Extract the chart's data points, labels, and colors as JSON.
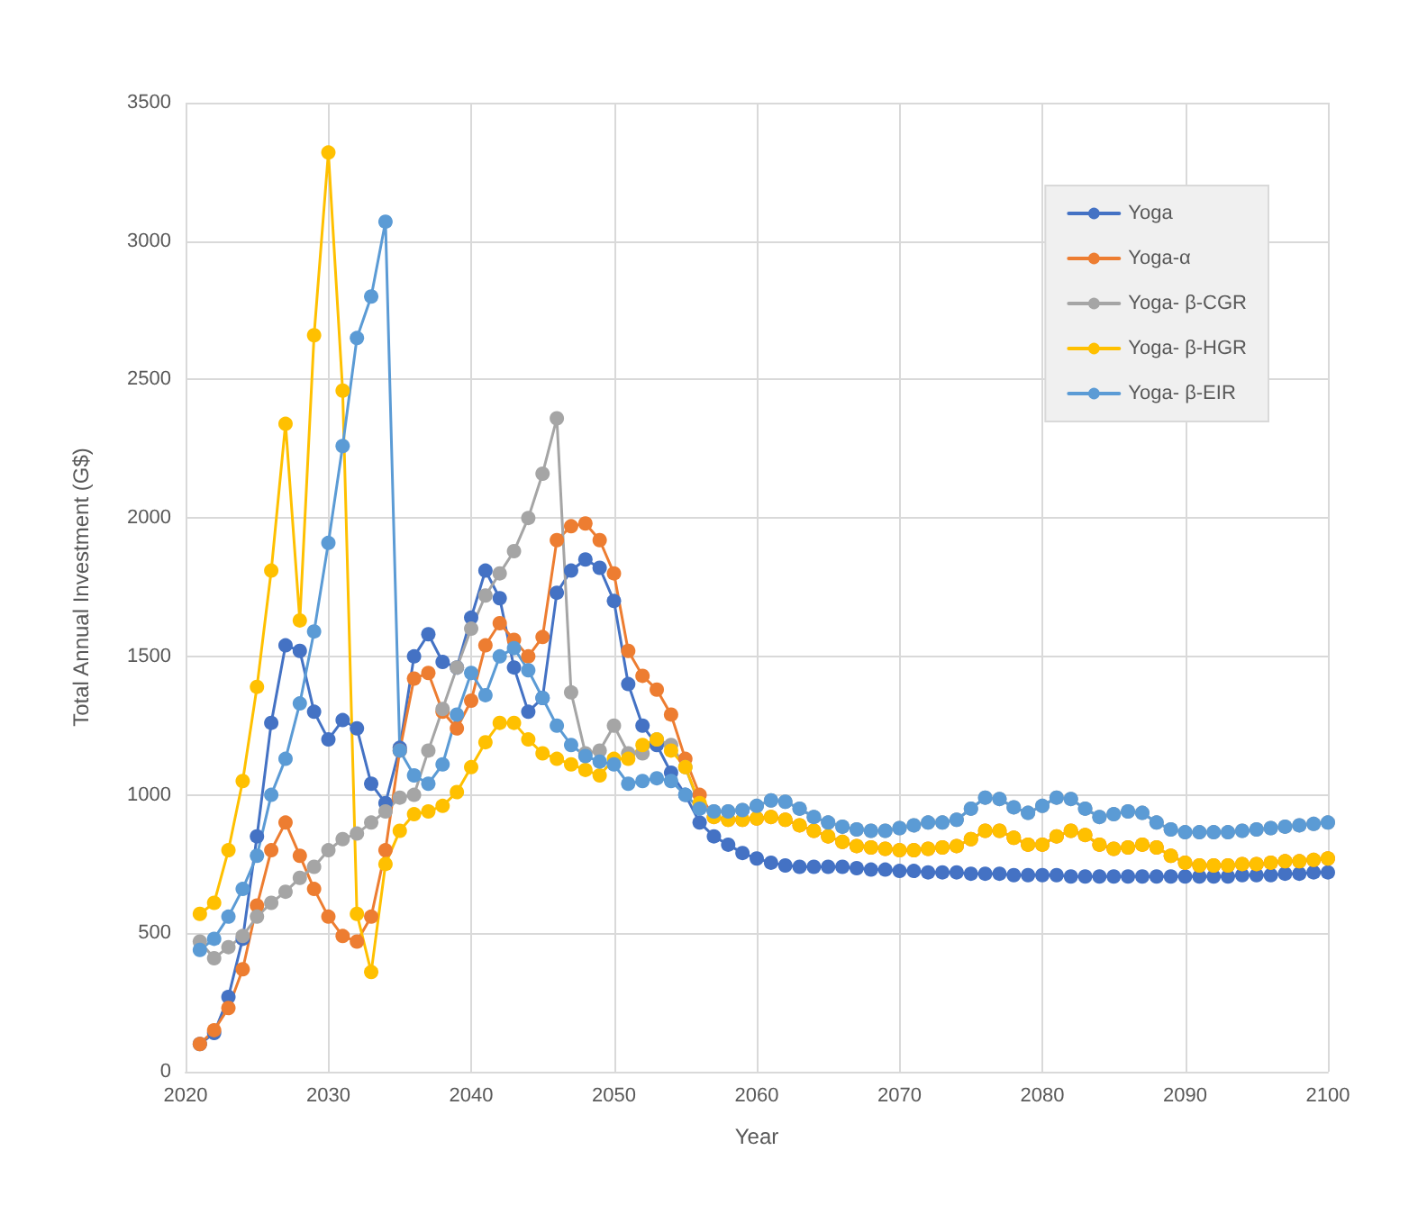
{
  "chart_data": {
    "type": "line",
    "xlabel": "Year",
    "ylabel": "Total Annual Investment (G$)",
    "x": [
      2021,
      2022,
      2023,
      2024,
      2025,
      2026,
      2027,
      2028,
      2029,
      2030,
      2031,
      2032,
      2033,
      2034,
      2035,
      2036,
      2037,
      2038,
      2039,
      2040,
      2041,
      2042,
      2043,
      2044,
      2045,
      2046,
      2047,
      2048,
      2049,
      2050,
      2051,
      2052,
      2053,
      2054,
      2055,
      2056,
      2057,
      2058,
      2059,
      2060,
      2061,
      2062,
      2063,
      2064,
      2065,
      2066,
      2067,
      2068,
      2069,
      2070,
      2071,
      2072,
      2073,
      2074,
      2075,
      2076,
      2077,
      2078,
      2079,
      2080,
      2081,
      2082,
      2083,
      2084,
      2085,
      2086,
      2087,
      2088,
      2089,
      2090,
      2091,
      2092,
      2093,
      2094,
      2095,
      2096,
      2097,
      2098,
      2099,
      2100
    ],
    "series": [
      {
        "name": "Yoga",
        "color": "#4472c4",
        "values": [
          100,
          140,
          270,
          480,
          850,
          1260,
          1540,
          1520,
          1300,
          1200,
          1270,
          1240,
          1040,
          970,
          1170,
          1500,
          1580,
          1480,
          1460,
          1640,
          1810,
          1710,
          1460,
          1300,
          1350,
          1730,
          1810,
          1850,
          1820,
          1700,
          1400,
          1250,
          1180,
          1080,
          1000,
          900,
          850,
          820,
          790,
          770,
          755,
          745,
          740,
          740,
          740,
          740,
          735,
          730,
          730,
          725,
          725,
          720,
          720,
          720,
          715,
          715,
          715,
          710,
          710,
          710,
          710,
          705,
          705,
          705,
          705,
          705,
          705,
          705,
          705,
          705,
          705,
          705,
          705,
          710,
          710,
          710,
          715,
          715,
          720,
          720
        ]
      },
      {
        "name": "Yoga-α",
        "color": "#ed7d31",
        "values": [
          100,
          150,
          230,
          370,
          600,
          800,
          900,
          780,
          660,
          560,
          490,
          470,
          560,
          800,
          1160,
          1420,
          1440,
          1300,
          1240,
          1340,
          1540,
          1620,
          1560,
          1500,
          1570,
          1920,
          1970,
          1980,
          1920,
          1800,
          1520,
          1430,
          1380,
          1290,
          1130,
          1000,
          920,
          910,
          910,
          915,
          920,
          910,
          890,
          870,
          850,
          830,
          815,
          810,
          805,
          800,
          800,
          805,
          810,
          815,
          840,
          870,
          870,
          845,
          820,
          820,
          850,
          870,
          855,
          820,
          805,
          810,
          820,
          810,
          780,
          755,
          745,
          745,
          745,
          750,
          750,
          755,
          760,
          760,
          765,
          770
        ]
      },
      {
        "name": "Yoga- β-CGR",
        "color": "#a5a5a5",
        "values": [
          470,
          410,
          450,
          490,
          560,
          610,
          650,
          700,
          740,
          800,
          840,
          860,
          900,
          940,
          990,
          1000,
          1160,
          1310,
          1460,
          1600,
          1720,
          1800,
          1880,
          2000,
          2160,
          2360,
          1370,
          1150,
          1160,
          1250,
          1150,
          1150,
          1200,
          1180,
          1100,
          960,
          940,
          940,
          945,
          960,
          980,
          975,
          950,
          920,
          900,
          885,
          875,
          870,
          870,
          880,
          890,
          900,
          900,
          910,
          950,
          990,
          985,
          955,
          935,
          960,
          990,
          985,
          950,
          920,
          930,
          940,
          935,
          900,
          875,
          865,
          865,
          865,
          865,
          870,
          875,
          880,
          885,
          890,
          895,
          900
        ]
      },
      {
        "name": "Yoga- β-HGR",
        "color": "#ffc000",
        "values": [
          570,
          610,
          800,
          1050,
          1390,
          1810,
          2340,
          1630,
          2660,
          3320,
          2460,
          570,
          360,
          750,
          870,
          930,
          940,
          960,
          1010,
          1100,
          1190,
          1260,
          1260,
          1200,
          1150,
          1130,
          1110,
          1090,
          1070,
          1130,
          1130,
          1180,
          1200,
          1160,
          1100,
          970,
          920,
          910,
          910,
          915,
          920,
          910,
          890,
          870,
          850,
          830,
          815,
          810,
          805,
          800,
          800,
          805,
          810,
          815,
          840,
          870,
          870,
          845,
          820,
          820,
          850,
          870,
          855,
          820,
          805,
          810,
          820,
          810,
          780,
          755,
          745,
          745,
          745,
          750,
          750,
          755,
          760,
          760,
          765,
          770
        ]
      },
      {
        "name": "Yoga- β-EIR",
        "color": "#5b9bd5",
        "values": [
          440,
          480,
          560,
          660,
          780,
          1000,
          1130,
          1330,
          1590,
          1910,
          2260,
          2650,
          2800,
          3070,
          1160,
          1070,
          1040,
          1110,
          1290,
          1440,
          1360,
          1500,
          1530,
          1450,
          1350,
          1250,
          1180,
          1140,
          1120,
          1110,
          1040,
          1050,
          1060,
          1050,
          1000,
          950,
          940,
          940,
          945,
          960,
          980,
          975,
          950,
          920,
          900,
          885,
          875,
          870,
          870,
          880,
          890,
          900,
          900,
          910,
          950,
          990,
          985,
          955,
          935,
          960,
          990,
          985,
          950,
          920,
          930,
          940,
          935,
          900,
          875,
          865,
          865,
          865,
          865,
          870,
          875,
          880,
          885,
          890,
          895,
          900
        ]
      }
    ],
    "xlim": [
      2020,
      2100
    ],
    "xticks": [
      2020,
      2030,
      2040,
      2050,
      2060,
      2070,
      2080,
      2090,
      2100
    ],
    "ylim": [
      0,
      3500
    ],
    "yticks": [
      0,
      500,
      1000,
      1500,
      2000,
      2500,
      3000,
      3500
    ],
    "grid": true,
    "legend": "top right",
    "marker": "circle",
    "line_style": "solid"
  }
}
